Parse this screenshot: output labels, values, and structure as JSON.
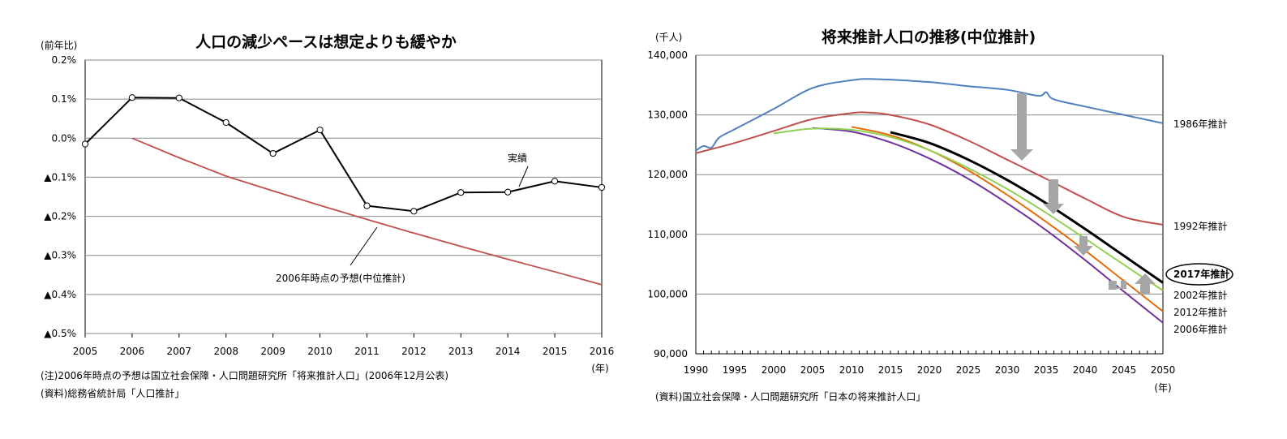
{
  "chart_data": [
    {
      "type": "line",
      "title": "人口の減少ペースは想定よりも緩やか",
      "ylabel": "(前年比)",
      "xlabel": "(年)",
      "x": [
        2005,
        2006,
        2007,
        2008,
        2009,
        2010,
        2011,
        2012,
        2013,
        2014,
        2015,
        2016
      ],
      "ylim": [
        -0.5,
        0.2
      ],
      "y_ticks": [
        0.2,
        0.1,
        0.0,
        -0.1,
        -0.2,
        -0.3,
        -0.4,
        -0.5
      ],
      "y_tick_labels": [
        "0.2%",
        "0.1%",
        "0.0%",
        "▲0.1%",
        "▲0.2%",
        "▲0.3%",
        "▲0.4%",
        "▲0.5%"
      ],
      "grid": true,
      "series": [
        {
          "name": "実績",
          "color": "#000000",
          "markers": true,
          "x": [
            2005,
            2006,
            2007,
            2008,
            2009,
            2010,
            2011,
            2012,
            2013,
            2014,
            2015,
            2016
          ],
          "values": [
            -0.015,
            0.104,
            0.103,
            0.04,
            -0.039,
            0.021,
            -0.173,
            -0.187,
            -0.139,
            -0.138,
            -0.11,
            -0.126
          ]
        },
        {
          "name": "2006年時点の予想(中位推計)",
          "color": "#c0504d",
          "markers": false,
          "x": [
            2006,
            2007,
            2008,
            2009,
            2010,
            2011,
            2012,
            2013,
            2014,
            2015,
            2016
          ],
          "values": [
            0.0,
            -0.05,
            -0.097,
            -0.135,
            -0.172,
            -0.208,
            -0.243,
            -0.277,
            -0.31,
            -0.342,
            -0.375
          ]
        }
      ],
      "notes": [
        "(注)2006年時点の予想は国立社会保障・人口問題研究所「将来推計人口」(2006年12月公表)",
        "(資料)総務省統計局「人口推計」"
      ]
    },
    {
      "type": "line",
      "title": "将来推計人口の推移(中位推計)",
      "ylabel": "(千人)",
      "xlabel": "(年)",
      "xlim": [
        1990,
        2050
      ],
      "x_ticks": [
        1990,
        1995,
        2000,
        2005,
        2010,
        2015,
        2020,
        2025,
        2030,
        2035,
        2040,
        2045,
        2050
      ],
      "ylim": [
        90000,
        140000
      ],
      "y_ticks": [
        90000,
        100000,
        110000,
        120000,
        130000,
        140000
      ],
      "y_tick_labels": [
        "90,000",
        "100,000",
        "110,000",
        "120,000",
        "130,000",
        "140,000"
      ],
      "grid": true,
      "series": [
        {
          "name": "1986年推計",
          "color": "#4f81bd",
          "x": [
            1990,
            1991,
            1992,
            1993,
            1995,
            2000,
            2005,
            2010,
            2013,
            2020,
            2025,
            2030,
            2034,
            2035,
            2036,
            2040,
            2045,
            2050
          ],
          "values": [
            124000,
            124800,
            124500,
            126200,
            127600,
            131000,
            134500,
            135800,
            136000,
            135500,
            134800,
            134200,
            133200,
            133800,
            132600,
            131400,
            130000,
            128600
          ]
        },
        {
          "name": "1992年推計",
          "color": "#c0504d",
          "x": [
            1990,
            1995,
            2000,
            2005,
            2010,
            2012,
            2015,
            2020,
            2025,
            2030,
            2035,
            2040,
            2045,
            2050
          ],
          "values": [
            123600,
            125300,
            127300,
            129300,
            130300,
            130400,
            130000,
            128400,
            125700,
            122500,
            119300,
            116000,
            112900,
            111600
          ]
        },
        {
          "name": "2006年推計",
          "color": "#7030a0",
          "x": [
            2005,
            2010,
            2015,
            2020,
            2025,
            2030,
            2035,
            2040,
            2045,
            2050
          ],
          "values": [
            127800,
            127200,
            125400,
            122700,
            119300,
            115200,
            110700,
            105700,
            100400,
            95200
          ]
        },
        {
          "name": "2012年推計",
          "color": "#e46c0a",
          "x": [
            2010,
            2015,
            2020,
            2025,
            2030,
            2035,
            2040,
            2045,
            2050
          ],
          "values": [
            128000,
            126600,
            124100,
            120700,
            116600,
            112100,
            107300,
            102200,
            97100
          ]
        },
        {
          "name": "2002年推計",
          "color": "#92d050",
          "x": [
            2000,
            2005,
            2010,
            2015,
            2020,
            2025,
            2030,
            2035,
            2040,
            2045,
            2050
          ],
          "values": [
            126900,
            127700,
            127500,
            126300,
            124100,
            121100,
            117600,
            113600,
            109300,
            104900,
            100600
          ]
        },
        {
          "name": "2017年推計",
          "color": "#000000",
          "highlight": true,
          "x": [
            2015,
            2020,
            2025,
            2030,
            2035,
            2040,
            2045,
            2050
          ],
          "values": [
            127100,
            125300,
            122500,
            119100,
            115200,
            110900,
            106400,
            101900
          ]
        }
      ],
      "notes": [
        "(資料)国立社会保障・人口問題研究所「日本の将来推計人口」"
      ]
    }
  ]
}
